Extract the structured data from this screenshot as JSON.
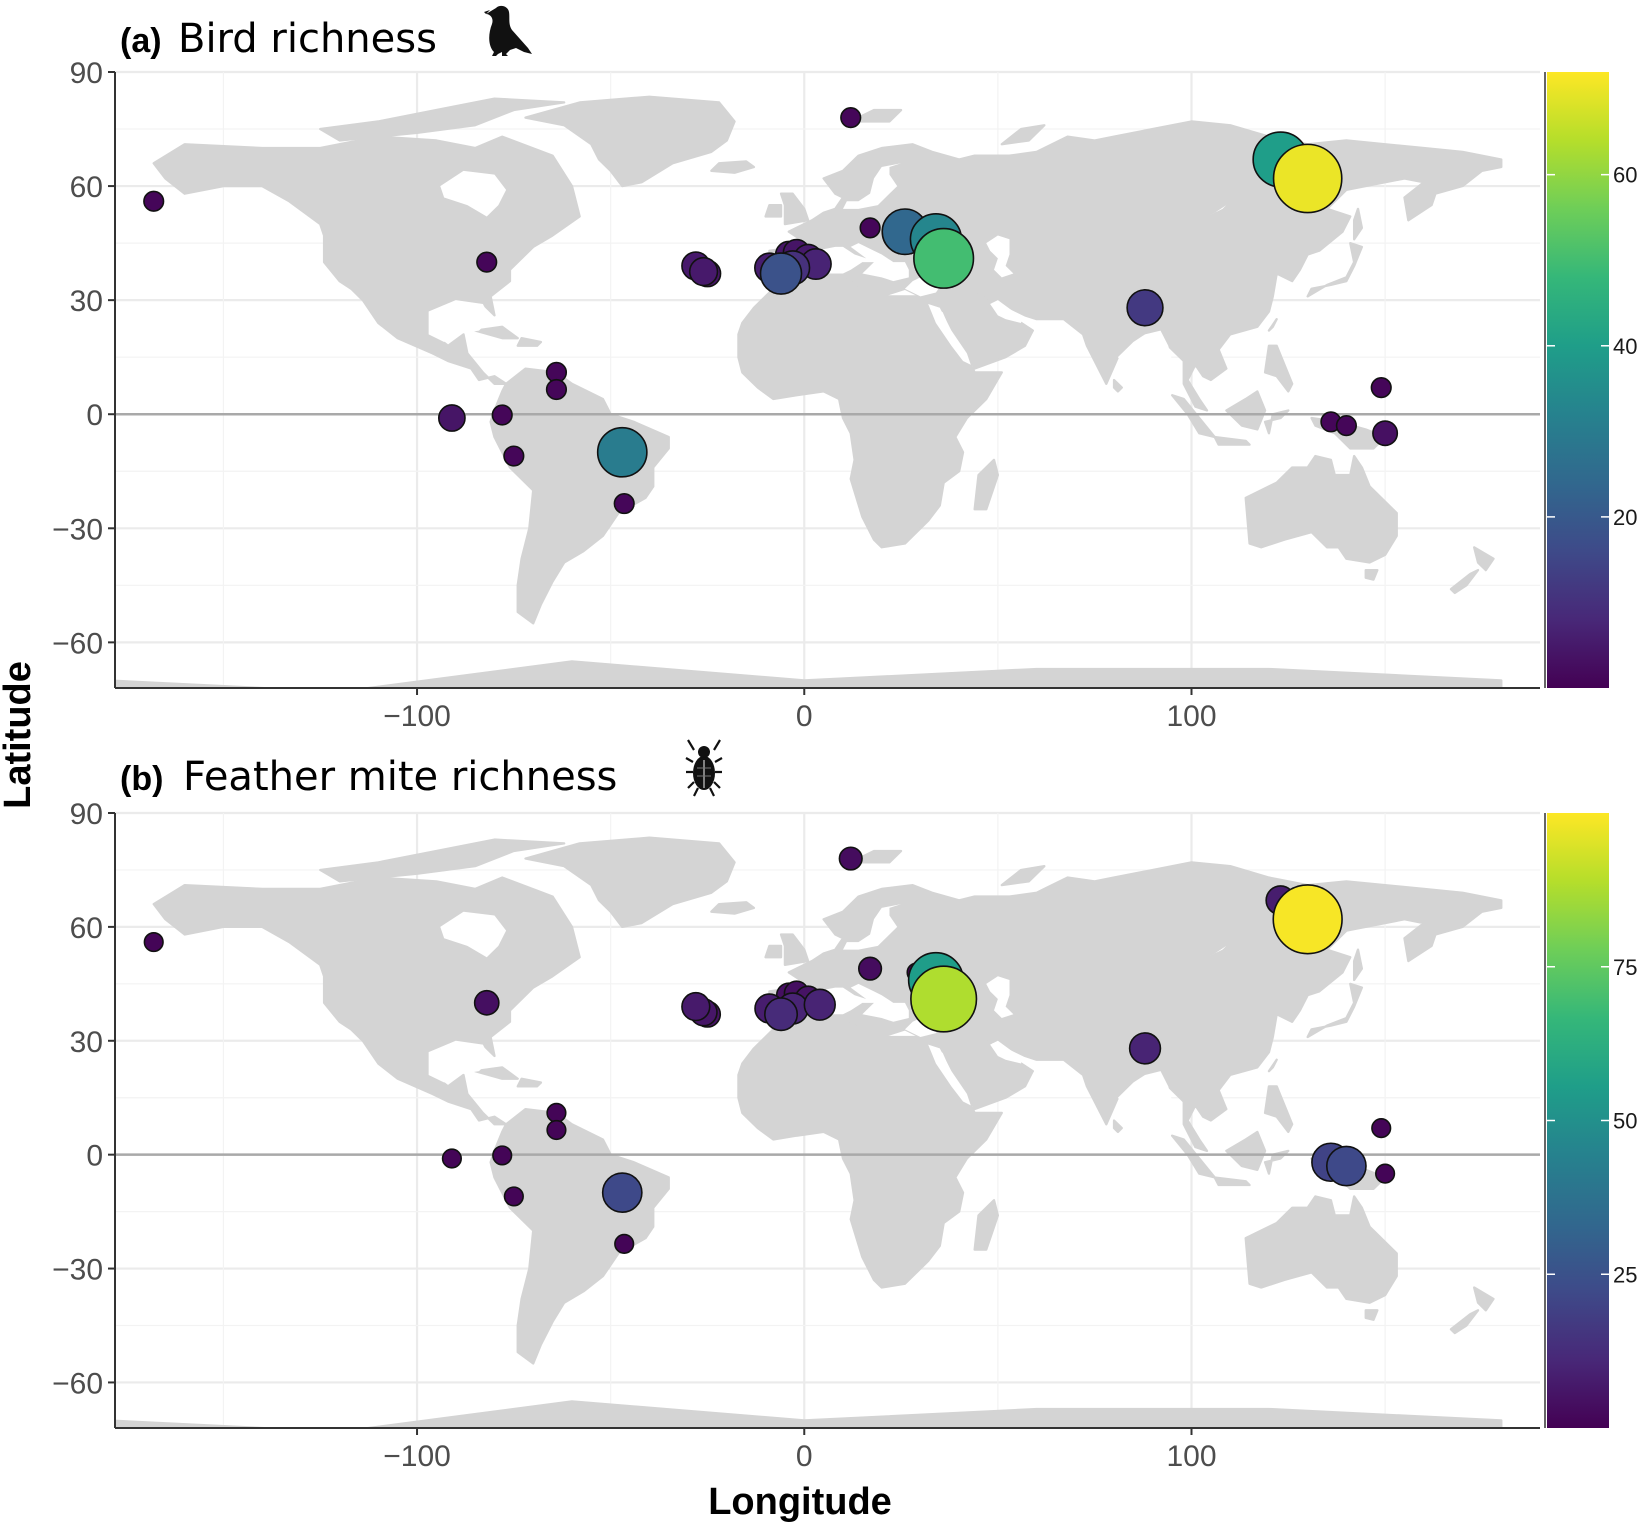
{
  "colors": {
    "land": "#d4d4d4",
    "grid": "#ebebeb",
    "equator": "#a9a9a9",
    "axis": "#333333",
    "tick_label": "#4d4d4d",
    "viridis": [
      "#440154",
      "#482878",
      "#3e4a89",
      "#31688e",
      "#26828e",
      "#1f9e89",
      "#35b779",
      "#6ece58",
      "#b5de2b",
      "#fde725"
    ]
  },
  "icons": {
    "panel_a": "bird-silhouette-icon",
    "panel_b": "feather-mite-icon"
  },
  "x_axis_label": "Longitude",
  "y_axis_label": "Latitude",
  "chart_data": [
    {
      "type": "scatter",
      "panel": "(a)",
      "title": "Bird richness",
      "xlim": [
        -178,
        190
      ],
      "ylim": [
        -72,
        90
      ],
      "x_ticks": [
        -100,
        0,
        100
      ],
      "y_ticks": [
        90,
        60,
        30,
        0,
        -30,
        -60
      ],
      "y_tick_labels": [
        "90",
        "60",
        "30",
        "0",
        "−30",
        "−60"
      ],
      "x_tick_labels": [
        "−100",
        "0",
        "100"
      ],
      "grid": true,
      "legend": {
        "position": "right",
        "type": "colorbar",
        "min": 0,
        "max": 72,
        "ticks": [
          20,
          40,
          60
        ],
        "tick_labels": [
          "20",
          "40",
          "60"
        ]
      },
      "points": [
        {
          "lon": 12,
          "lat": 78,
          "value": 1
        },
        {
          "lon": -168,
          "lat": 56,
          "value": 1
        },
        {
          "lon": -82,
          "lat": 40,
          "value": 1
        },
        {
          "lon": 123,
          "lat": 67,
          "value": 40
        },
        {
          "lon": 130,
          "lat": 62,
          "value": 70
        },
        {
          "lon": 26,
          "lat": 48,
          "value": 24
        },
        {
          "lon": 29,
          "lat": 47,
          "value": 1
        },
        {
          "lon": 34,
          "lat": 46,
          "value": 33
        },
        {
          "lon": 36,
          "lat": 41,
          "value": 50
        },
        {
          "lon": 17,
          "lat": 49,
          "value": 1
        },
        {
          "lon": -28,
          "lat": 39,
          "value": 5
        },
        {
          "lon": -26,
          "lat": 37.5,
          "value": 5
        },
        {
          "lon": -25,
          "lat": 37,
          "value": 4
        },
        {
          "lon": -9,
          "lat": 38.5,
          "value": 6
        },
        {
          "lon": -6,
          "lat": 37,
          "value": 18
        },
        {
          "lon": -3,
          "lat": 38.5,
          "value": 10
        },
        {
          "lon": -4,
          "lat": 42,
          "value": 4
        },
        {
          "lon": -2,
          "lat": 42.5,
          "value": 4
        },
        {
          "lon": -3,
          "lat": 37.5,
          "value": 3
        },
        {
          "lon": 1,
          "lat": 41,
          "value": 5
        },
        {
          "lon": 3,
          "lat": 39.5,
          "value": 7
        },
        {
          "lon": 88,
          "lat": 28,
          "value": 12
        },
        {
          "lon": -64,
          "lat": 11,
          "value": 1
        },
        {
          "lon": -64,
          "lat": 6.5,
          "value": 1
        },
        {
          "lon": -91,
          "lat": -1,
          "value": 4
        },
        {
          "lon": -78,
          "lat": -0.2,
          "value": 1
        },
        {
          "lon": -75,
          "lat": -11,
          "value": 1
        },
        {
          "lon": -47,
          "lat": -10,
          "value": 30
        },
        {
          "lon": -46.5,
          "lat": -23.5,
          "value": 1
        },
        {
          "lon": 149,
          "lat": 7,
          "value": 1
        },
        {
          "lon": 136,
          "lat": -2,
          "value": 1
        },
        {
          "lon": 140,
          "lat": -3,
          "value": 1
        },
        {
          "lon": 150,
          "lat": -5,
          "value": 3
        }
      ]
    },
    {
      "type": "scatter",
      "panel": "(b)",
      "title": "Feather mite richness",
      "xlim": [
        -178,
        190
      ],
      "ylim": [
        -72,
        90
      ],
      "x_ticks": [
        -100,
        0,
        100
      ],
      "y_ticks": [
        90,
        60,
        30,
        0,
        -30,
        -60
      ],
      "y_tick_labels": [
        "90",
        "60",
        "30",
        "0",
        "−30",
        "−60"
      ],
      "x_tick_labels": [
        "−100",
        "0",
        "100"
      ],
      "grid": true,
      "legend": {
        "position": "right",
        "type": "colorbar",
        "min": 0,
        "max": 100,
        "ticks": [
          25,
          50,
          75
        ],
        "tick_labels": [
          "25",
          "50",
          "75"
        ]
      },
      "points": [
        {
          "lon": 12,
          "lat": 78,
          "value": 3
        },
        {
          "lon": -168,
          "lat": 56,
          "value": 1
        },
        {
          "lon": -82,
          "lat": 40,
          "value": 4
        },
        {
          "lon": 123,
          "lat": 67,
          "value": 8
        },
        {
          "lon": 130,
          "lat": 62,
          "value": 99
        },
        {
          "lon": 29,
          "lat": 48,
          "value": 1
        },
        {
          "lon": 34,
          "lat": 46,
          "value": 55
        },
        {
          "lon": 36,
          "lat": 41,
          "value": 88
        },
        {
          "lon": 17,
          "lat": 49,
          "value": 3
        },
        {
          "lon": -28,
          "lat": 39,
          "value": 7
        },
        {
          "lon": -26,
          "lat": 37.5,
          "value": 6
        },
        {
          "lon": -25,
          "lat": 37,
          "value": 5
        },
        {
          "lon": -9,
          "lat": 38.5,
          "value": 8
        },
        {
          "lon": -6,
          "lat": 37,
          "value": 12
        },
        {
          "lon": -3,
          "lat": 38.5,
          "value": 10
        },
        {
          "lon": -4,
          "lat": 42,
          "value": 4
        },
        {
          "lon": -2,
          "lat": 42.5,
          "value": 4
        },
        {
          "lon": -3,
          "lat": 37.5,
          "value": 3
        },
        {
          "lon": 1,
          "lat": 41,
          "value": 5
        },
        {
          "lon": 4,
          "lat": 39.5,
          "value": 10
        },
        {
          "lon": 88,
          "lat": 28,
          "value": 10
        },
        {
          "lon": -64,
          "lat": 11,
          "value": 1
        },
        {
          "lon": -64,
          "lat": 6.5,
          "value": 1
        },
        {
          "lon": -91,
          "lat": -1,
          "value": 1
        },
        {
          "lon": -78,
          "lat": -0.2,
          "value": 1
        },
        {
          "lon": -75,
          "lat": -11,
          "value": 1
        },
        {
          "lon": -47,
          "lat": -10,
          "value": 22
        },
        {
          "lon": -46.5,
          "lat": -23.5,
          "value": 1
        },
        {
          "lon": 149,
          "lat": 7,
          "value": 1
        },
        {
          "lon": 136,
          "lat": -2,
          "value": 20
        },
        {
          "lon": 140,
          "lat": -3,
          "value": 22
        },
        {
          "lon": 150,
          "lat": -5,
          "value": 1
        }
      ]
    }
  ]
}
